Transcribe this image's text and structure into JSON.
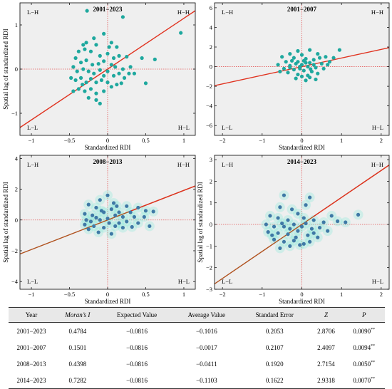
{
  "colors": {
    "panel_bg": "#efefef",
    "regression_line": "#e0321f",
    "regression_line_alt": "#b0521f",
    "point_teal": "#1ea89e",
    "point_blue": "#3f79a6",
    "halo": "#7ee8d9",
    "ref_line": "#e35a5a"
  },
  "chart_data": [
    {
      "type": "scatter",
      "title": "2001−2023",
      "xlabel": "Standardized RDI",
      "ylabel": "Spatial lag of standardized RDI",
      "xlim": [
        -1.15,
        1.15
      ],
      "ylim": [
        -1.5,
        1.5
      ],
      "xticks": [
        -1,
        -0.5,
        0,
        0.5,
        1
      ],
      "xtick_labels": [
        "−1",
        "−0.5",
        "0",
        "0.5",
        "1"
      ],
      "yticks": [
        -1,
        0,
        1
      ],
      "ytick_labels": [
        "−1",
        "0",
        "1"
      ],
      "quadrants": {
        "tl": "L−H",
        "tr": "H−H",
        "bl": "L−L",
        "br": "H−L"
      },
      "regression": {
        "slope": 1.15,
        "intercept": 0.0
      },
      "point_style": "teal",
      "halo": false,
      "points": [
        [
          -0.27,
          1.32
        ],
        [
          0.2,
          1.18
        ],
        [
          0.96,
          0.82
        ],
        [
          -0.05,
          0.8
        ],
        [
          -0.18,
          0.7
        ],
        [
          -0.32,
          0.55
        ],
        [
          -0.28,
          0.6
        ],
        [
          -0.15,
          0.55
        ],
        [
          0.02,
          0.5
        ],
        [
          0.05,
          0.6
        ],
        [
          0.12,
          0.5
        ],
        [
          -0.38,
          0.4
        ],
        [
          -0.3,
          0.45
        ],
        [
          -0.22,
          0.4
        ],
        [
          -0.1,
          0.3
        ],
        [
          0.0,
          0.35
        ],
        [
          0.08,
          0.25
        ],
        [
          0.15,
          0.3
        ],
        [
          0.25,
          0.28
        ],
        [
          0.45,
          0.25
        ],
        [
          0.62,
          0.22
        ],
        [
          -0.42,
          0.25
        ],
        [
          -0.35,
          0.15
        ],
        [
          -0.28,
          0.2
        ],
        [
          -0.2,
          0.1
        ],
        [
          -0.12,
          0.12
        ],
        [
          -0.05,
          0.18
        ],
        [
          0.05,
          0.1
        ],
        [
          0.1,
          0.05
        ],
        [
          0.2,
          0.0
        ],
        [
          0.3,
          0.05
        ],
        [
          0.35,
          -0.1
        ],
        [
          -0.45,
          0.05
        ],
        [
          -0.4,
          -0.05
        ],
        [
          -0.32,
          0.0
        ],
        [
          -0.25,
          -0.05
        ],
        [
          -0.18,
          -0.1
        ],
        [
          -0.1,
          -0.02
        ],
        [
          0.0,
          -0.05
        ],
        [
          0.08,
          -0.15
        ],
        [
          0.15,
          -0.1
        ],
        [
          0.22,
          -0.2
        ],
        [
          0.5,
          -0.32
        ],
        [
          -0.48,
          -0.2
        ],
        [
          -0.42,
          -0.25
        ],
        [
          -0.35,
          -0.2
        ],
        [
          -0.28,
          -0.3
        ],
        [
          -0.22,
          -0.22
        ],
        [
          -0.15,
          -0.3
        ],
        [
          -0.08,
          -0.25
        ],
        [
          0.0,
          -0.3
        ],
        [
          0.05,
          -0.4
        ],
        [
          0.12,
          -0.35
        ],
        [
          -0.38,
          -0.45
        ],
        [
          -0.3,
          -0.5
        ],
        [
          -0.22,
          -0.45
        ],
        [
          -0.15,
          -0.55
        ],
        [
          -0.05,
          -0.5
        ],
        [
          -0.25,
          -0.65
        ],
        [
          -0.15,
          -0.7
        ],
        [
          -0.1,
          -0.78
        ],
        [
          -0.33,
          -0.35
        ],
        [
          -0.05,
          -0.15
        ],
        [
          0.18,
          -0.32
        ],
        [
          -0.45,
          -0.5
        ],
        [
          0.28,
          -0.1
        ]
      ]
    },
    {
      "type": "scatter",
      "title": "2001−2007",
      "xlabel": "Standardized RDI",
      "ylabel": "",
      "xlim": [
        -2.2,
        2.2
      ],
      "ylim": [
        -7,
        6.5
      ],
      "xticks": [
        -2,
        -1,
        0,
        1,
        2
      ],
      "xtick_labels": [
        "−2",
        "−1",
        "0",
        "1",
        "2"
      ],
      "yticks": [
        -6,
        -4,
        -2,
        0,
        2,
        4,
        6
      ],
      "ytick_labels": [
        "−6",
        "−4",
        "−2",
        "0",
        "2",
        "4",
        "6"
      ],
      "quadrants": {
        "tl": "L−H",
        "tr": "H−H",
        "bl": "L−L",
        "br": "H−L"
      },
      "regression": {
        "slope": 0.88,
        "intercept": 0.0
      },
      "point_style": "teal",
      "halo": false,
      "points": [
        [
          0.95,
          1.7
        ],
        [
          -0.1,
          1.6
        ],
        [
          0.2,
          1.7
        ],
        [
          -0.3,
          1.3
        ],
        [
          0.0,
          1.2
        ],
        [
          0.4,
          1.3
        ],
        [
          0.6,
          1.0
        ],
        [
          0.8,
          0.9
        ],
        [
          -0.5,
          1.0
        ],
        [
          -0.2,
          0.9
        ],
        [
          0.1,
          0.8
        ],
        [
          0.3,
          0.7
        ],
        [
          -0.4,
          0.5
        ],
        [
          -0.1,
          0.5
        ],
        [
          0.2,
          0.4
        ],
        [
          0.5,
          0.3
        ],
        [
          0.7,
          0.5
        ],
        [
          -0.6,
          0.2
        ],
        [
          -0.3,
          0.1
        ],
        [
          0.0,
          0.2
        ],
        [
          0.15,
          0.0
        ],
        [
          0.35,
          -0.1
        ],
        [
          0.55,
          -0.2
        ],
        [
          -0.45,
          -0.2
        ],
        [
          -0.2,
          -0.3
        ],
        [
          0.05,
          -0.4
        ],
        [
          0.25,
          -0.5
        ],
        [
          -0.35,
          -0.6
        ],
        [
          -0.1,
          -0.8
        ],
        [
          0.15,
          -0.9
        ],
        [
          0.4,
          -0.7
        ],
        [
          -0.15,
          -1.2
        ],
        [
          0.1,
          -1.4
        ],
        [
          0.2,
          -1.1
        ],
        [
          -0.05,
          -0.2
        ],
        [
          0.3,
          0.2
        ],
        [
          -0.25,
          0.6
        ],
        [
          0.45,
          0.9
        ],
        [
          0.65,
          0.2
        ],
        [
          -0.55,
          -0.5
        ],
        [
          0.0,
          -1.0
        ],
        [
          0.35,
          -1.3
        ],
        [
          -0.05,
          0.0
        ],
        [
          0.1,
          0.4
        ],
        [
          -0.15,
          0.3
        ],
        [
          0.22,
          -0.25
        ],
        [
          -0.3,
          -0.1
        ],
        [
          0.05,
          0.6
        ]
      ]
    },
    {
      "type": "scatter",
      "title": "2008−2013",
      "xlabel": "Standardized RDI",
      "ylabel": "Spatial lag of standardized RDI",
      "xlim": [
        -1.15,
        1.15
      ],
      "ylim": [
        -4.5,
        4.2
      ],
      "xticks": [
        -1,
        -0.5,
        0,
        0.5,
        1
      ],
      "xtick_labels": [
        "−1",
        "−0.5",
        "0",
        "0.5",
        "1"
      ],
      "yticks": [
        -4,
        -2,
        0,
        2,
        4
      ],
      "ytick_labels": [
        "−4",
        "−2",
        "0",
        "2",
        "4"
      ],
      "quadrants": {
        "tl": "L−H",
        "tr": "H−H",
        "bl": "L−L",
        "br": "H−L"
      },
      "regression": {
        "slope": 1.92,
        "intercept": 0.0
      },
      "point_style": "blue",
      "halo": true,
      "points": [
        [
          0.0,
          1.6
        ],
        [
          -0.1,
          1.3
        ],
        [
          0.08,
          1.1
        ],
        [
          -0.25,
          1.0
        ],
        [
          0.25,
          0.9
        ],
        [
          0.4,
          0.8
        ],
        [
          -0.15,
          0.8
        ],
        [
          0.05,
          0.7
        ],
        [
          -0.05,
          0.5
        ],
        [
          0.15,
          0.5
        ],
        [
          0.3,
          0.5
        ],
        [
          0.5,
          0.6
        ],
        [
          0.6,
          0.55
        ],
        [
          -0.3,
          0.4
        ],
        [
          -0.2,
          0.3
        ],
        [
          0.1,
          0.3
        ],
        [
          0.2,
          0.2
        ],
        [
          0.35,
          0.2
        ],
        [
          -0.28,
          0.0
        ],
        [
          -0.1,
          0.0
        ],
        [
          0.0,
          0.1
        ],
        [
          0.25,
          -0.1
        ],
        [
          0.4,
          -0.2
        ],
        [
          0.55,
          -0.4
        ],
        [
          -0.3,
          -0.3
        ],
        [
          -0.18,
          -0.4
        ],
        [
          -0.05,
          -0.5
        ],
        [
          0.1,
          -0.4
        ],
        [
          0.2,
          -0.5
        ],
        [
          -0.12,
          -0.8
        ],
        [
          0.05,
          -0.9
        ],
        [
          -0.25,
          -0.6
        ],
        [
          0.15,
          -0.2
        ],
        [
          -0.08,
          0.6
        ],
        [
          0.32,
          -0.45
        ],
        [
          -0.22,
          -0.1
        ],
        [
          0.48,
          0.2
        ],
        [
          0.02,
          -0.2
        ],
        [
          -0.15,
          0.15
        ],
        [
          0.12,
          0.9
        ]
      ]
    },
    {
      "type": "scatter",
      "title": "2014−2023",
      "xlabel": "Standardized RDI",
      "ylabel": "Spatial lag of standardized RDI",
      "xlim": [
        -2.2,
        2.2
      ],
      "ylim": [
        -3,
        3.2
      ],
      "xticks": [
        -2,
        -1,
        0,
        1,
        2
      ],
      "xtick_labels": [
        "−2",
        "−1",
        "0",
        "1",
        "2"
      ],
      "yticks": [
        -3,
        -2,
        -1,
        0,
        1,
        2,
        3
      ],
      "ytick_labels": [
        "−3",
        "−2",
        "−1",
        "0",
        "1",
        "2",
        "3"
      ],
      "quadrants": {
        "tl": "L−H",
        "tr": "H−H",
        "bl": "L−L",
        "br": "H−L"
      },
      "regression": {
        "slope": 1.25,
        "intercept": 0.0
      },
      "point_style": "blue",
      "halo": true,
      "points": [
        [
          -0.45,
          1.35
        ],
        [
          0.2,
          1.25
        ],
        [
          0.1,
          0.9
        ],
        [
          -0.25,
          0.7
        ],
        [
          -0.55,
          0.8
        ],
        [
          1.42,
          0.45
        ],
        [
          0.75,
          0.4
        ],
        [
          0.9,
          0.15
        ],
        [
          1.1,
          0.1
        ],
        [
          -0.8,
          0.4
        ],
        [
          -0.6,
          0.3
        ],
        [
          -0.35,
          0.2
        ],
        [
          -0.1,
          0.5
        ],
        [
          0.05,
          0.3
        ],
        [
          0.3,
          0.2
        ],
        [
          0.55,
          0.1
        ],
        [
          -0.9,
          0.0
        ],
        [
          -0.7,
          -0.1
        ],
        [
          -0.45,
          -0.1
        ],
        [
          -0.2,
          0.0
        ],
        [
          0.0,
          -0.1
        ],
        [
          0.25,
          -0.2
        ],
        [
          0.45,
          -0.15
        ],
        [
          0.65,
          -0.3
        ],
        [
          -0.85,
          -0.35
        ],
        [
          -0.6,
          -0.4
        ],
        [
          -0.35,
          -0.45
        ],
        [
          -0.1,
          -0.3
        ],
        [
          0.15,
          -0.5
        ],
        [
          0.4,
          -0.6
        ],
        [
          -0.7,
          -0.7
        ],
        [
          -0.45,
          -0.8
        ],
        [
          -0.2,
          -0.75
        ],
        [
          0.05,
          -0.9
        ],
        [
          -0.55,
          -1.1
        ],
        [
          -0.3,
          -1.0
        ],
        [
          -0.05,
          -0.95
        ],
        [
          0.2,
          -0.8
        ],
        [
          -0.75,
          -0.5
        ],
        [
          -0.15,
          -0.6
        ],
        [
          0.3,
          -0.4
        ],
        [
          -0.5,
          0.05
        ],
        [
          0.1,
          0.05
        ],
        [
          -0.3,
          -0.2
        ]
      ]
    }
  ],
  "table": {
    "headers": [
      "Year",
      "Moran’s I",
      "Expected Value",
      "Average Value",
      "Standard Error",
      "Z",
      "P"
    ],
    "rows": [
      [
        "2001−2023",
        "0.4784",
        "−0.0816",
        "−0.1016",
        "0.2053",
        "2.8706",
        "0.0090",
        "**"
      ],
      [
        "2001−2007",
        "0.1501",
        "−0.0816",
        "−0.0017",
        "0.2107",
        "2.4097",
        "0.0094",
        "**"
      ],
      [
        "2008−2013",
        "0.4398",
        "−0.0816",
        "−0.0411",
        "0.1920",
        "2.7154",
        "0.0050",
        "**"
      ],
      [
        "2014−2023",
        "0.7282",
        "−0.0816",
        "−0.1103",
        "0.1622",
        "2.9318",
        "0.0070",
        "**"
      ]
    ]
  }
}
